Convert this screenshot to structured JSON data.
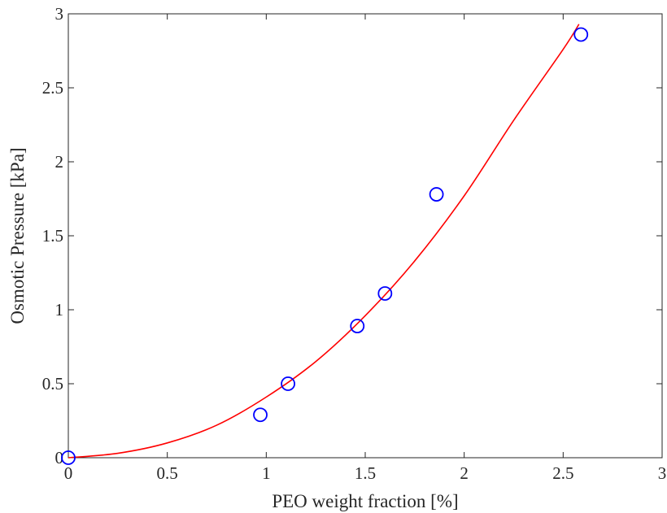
{
  "chart_data": {
    "type": "scatter",
    "title": "",
    "xlabel": "PEO weight fraction [%]",
    "ylabel": "Osmotic Pressure [kPa]",
    "xlim": [
      0,
      3
    ],
    "ylim": [
      0,
      3
    ],
    "x_ticks": [
      0,
      0.5,
      1,
      1.5,
      2,
      2.5,
      3
    ],
    "y_ticks": [
      0,
      0.5,
      1,
      1.5,
      2,
      2.5,
      3
    ],
    "x_tick_labels": [
      "0",
      "0.5",
      "1",
      "1.5",
      "2",
      "2.5",
      "3"
    ],
    "y_tick_labels": [
      "0",
      "0.5",
      "1",
      "1.5",
      "2",
      "2.5",
      "3"
    ],
    "grid": false,
    "series": [
      {
        "type": "scatter",
        "marker": "circle-open",
        "color": "#0000ff",
        "x": [
          0,
          0.97,
          1.11,
          1.46,
          1.6,
          1.86,
          2.59
        ],
        "y": [
          0,
          0.29,
          0.5,
          0.89,
          1.11,
          1.78,
          2.86
        ]
      },
      {
        "type": "line",
        "color": "#ff0000",
        "x": [
          0,
          0.25,
          0.5,
          0.75,
          1.0,
          1.25,
          1.5,
          1.75,
          2.0,
          2.25,
          2.5,
          2.58
        ],
        "y": [
          0,
          0.03,
          0.1,
          0.22,
          0.41,
          0.65,
          0.96,
          1.33,
          1.77,
          2.28,
          2.76,
          2.93
        ]
      }
    ]
  }
}
